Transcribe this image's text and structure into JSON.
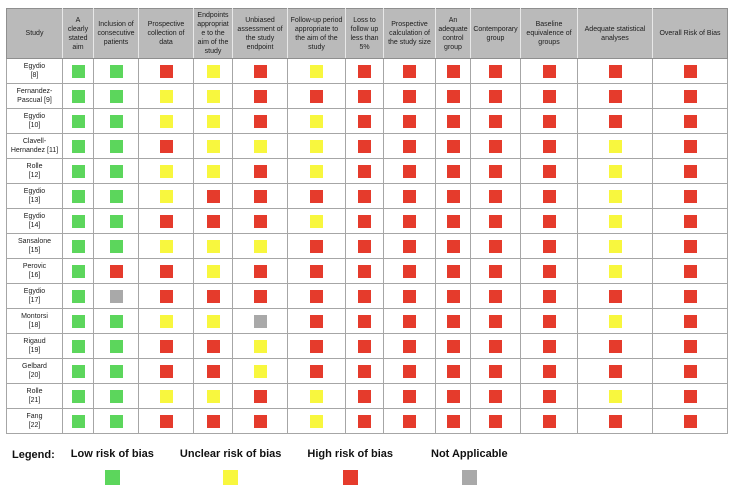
{
  "colors": {
    "low": "#5cd65c",
    "unclear": "#f8f73e",
    "high": "#e53b2c",
    "na": "#a9a9a9"
  },
  "chart_data": {
    "type": "table",
    "study_header": "Study",
    "columns": [
      "A clearly stated aim",
      "Inclusion of consecutive patients",
      "Prospective collection of data",
      "Endpoints appropriate to the aim of the study",
      "Unbiased assessment of the study endpoint",
      "Follow-up period appropriate to the aim of the study",
      "Loss to follow up less than 5%",
      "Prospective calculation of the study size",
      "An adequate control group",
      "Contemporary group",
      "Baseline equivalence of groups",
      "Adequate statistical analyses",
      "Overall Risk of Bias"
    ],
    "rating_labels": {
      "low": "Low risk of bias",
      "unclear": "Unclear risk of bias",
      "high": "High risk of bias",
      "na": "Not Applicable"
    },
    "rows": [
      {
        "study": "Egydio\n[8]",
        "ratings": [
          "low",
          "low",
          "high",
          "unclear",
          "high",
          "unclear",
          "high",
          "high",
          "high",
          "high",
          "high",
          "high",
          "high"
        ]
      },
      {
        "study": "Fernandez-Pascual [9]",
        "ratings": [
          "low",
          "low",
          "unclear",
          "unclear",
          "high",
          "high",
          "high",
          "high",
          "high",
          "high",
          "high",
          "high",
          "high"
        ]
      },
      {
        "study": "Egydio\n[10]",
        "ratings": [
          "low",
          "low",
          "unclear",
          "unclear",
          "high",
          "unclear",
          "high",
          "high",
          "high",
          "high",
          "high",
          "high",
          "high"
        ]
      },
      {
        "study": "Clavell-Hernandez [11]",
        "ratings": [
          "low",
          "low",
          "high",
          "unclear",
          "unclear",
          "unclear",
          "high",
          "high",
          "high",
          "high",
          "high",
          "unclear",
          "high"
        ]
      },
      {
        "study": "Rolle\n[12]",
        "ratings": [
          "low",
          "low",
          "unclear",
          "unclear",
          "high",
          "unclear",
          "high",
          "high",
          "high",
          "high",
          "high",
          "unclear",
          "high"
        ]
      },
      {
        "study": "Egydio\n[13]",
        "ratings": [
          "low",
          "low",
          "unclear",
          "high",
          "high",
          "high",
          "high",
          "high",
          "high",
          "high",
          "high",
          "unclear",
          "high"
        ]
      },
      {
        "study": "Egydio\n[14]",
        "ratings": [
          "low",
          "low",
          "high",
          "high",
          "high",
          "unclear",
          "high",
          "high",
          "high",
          "high",
          "high",
          "unclear",
          "high"
        ]
      },
      {
        "study": "Sansalone\n[15]",
        "ratings": [
          "low",
          "low",
          "unclear",
          "unclear",
          "unclear",
          "high",
          "high",
          "high",
          "high",
          "high",
          "high",
          "unclear",
          "high"
        ]
      },
      {
        "study": "Perovic\n[16]",
        "ratings": [
          "low",
          "high",
          "high",
          "unclear",
          "high",
          "high",
          "high",
          "high",
          "high",
          "high",
          "high",
          "unclear",
          "high"
        ]
      },
      {
        "study": "Egydio\n[17]",
        "ratings": [
          "low",
          "na",
          "high",
          "high",
          "high",
          "high",
          "high",
          "high",
          "high",
          "high",
          "high",
          "high",
          "high"
        ]
      },
      {
        "study": "Montorsi\n[18]",
        "ratings": [
          "low",
          "low",
          "unclear",
          "unclear",
          "na",
          "high",
          "high",
          "high",
          "high",
          "high",
          "high",
          "unclear",
          "high"
        ]
      },
      {
        "study": "Rigaud\n[19]",
        "ratings": [
          "low",
          "low",
          "high",
          "high",
          "unclear",
          "high",
          "high",
          "high",
          "high",
          "high",
          "high",
          "high",
          "high"
        ]
      },
      {
        "study": "Gelbard\n[20]",
        "ratings": [
          "low",
          "low",
          "high",
          "high",
          "unclear",
          "high",
          "high",
          "high",
          "high",
          "high",
          "high",
          "high",
          "high"
        ]
      },
      {
        "study": "Rolle\n[21]",
        "ratings": [
          "low",
          "low",
          "unclear",
          "unclear",
          "high",
          "unclear",
          "high",
          "high",
          "high",
          "high",
          "high",
          "unclear",
          "high"
        ]
      },
      {
        "study": "Fang\n[22]",
        "ratings": [
          "low",
          "low",
          "high",
          "high",
          "high",
          "unclear",
          "high",
          "high",
          "high",
          "high",
          "high",
          "high",
          "high"
        ]
      }
    ]
  },
  "legend": {
    "title": "Legend:",
    "items": [
      {
        "label": "Low risk of bias",
        "key": "low"
      },
      {
        "label": "Unclear risk of bias",
        "key": "unclear"
      },
      {
        "label": "High risk of bias",
        "key": "high"
      },
      {
        "label": "Not Applicable",
        "key": "na"
      }
    ]
  }
}
